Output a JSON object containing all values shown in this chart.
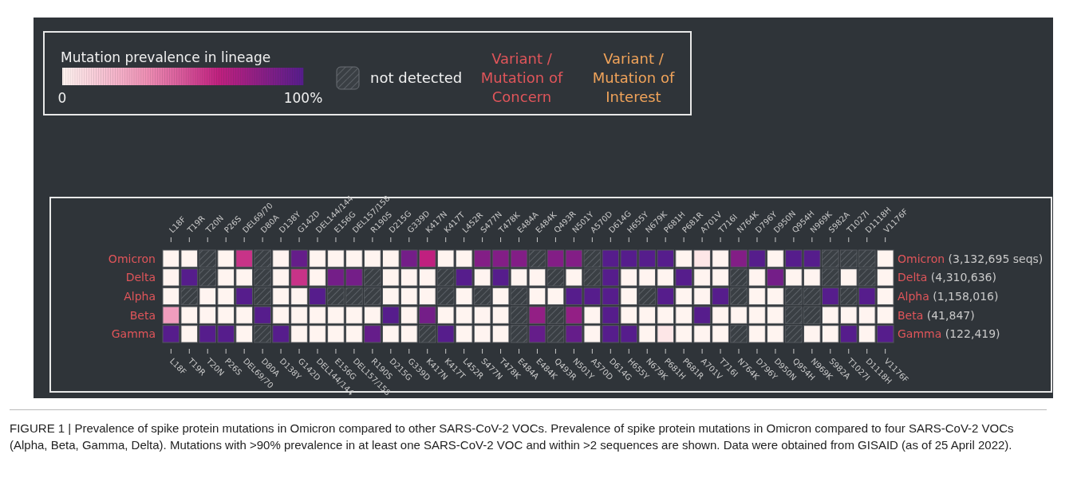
{
  "chart_data": {
    "type": "heatmap",
    "clabel": "Mutation prevalence in lineage",
    "clim": [
      0,
      100
    ],
    "cticks": [
      {
        "value": 0,
        "label": "0"
      },
      {
        "value": 100,
        "label": "100%"
      }
    ],
    "annotations": [
      "not detected",
      "Variant / Mutation of Concern",
      "Variant / Mutation of Interest",
      "FIGURE 1 | Prevalence of spike protein mutations in Omicron compared to other SARS-CoV-2 VOCs. Prevalence of spike protein mutations in Omicron compared to four SARS-CoV-2 VOCs (Alpha, Beta, Gamma, Delta). Mutations with >90% prevalence in at least one SARS-CoV-2 VOC and within >2 sequences are shown. Data were obtained from GISAID (as of 25 April 2022)."
    ],
    "categories": [
      "L18F",
      "T19R",
      "T20N",
      "P26S",
      "DEL69/70",
      "D80A",
      "D138Y",
      "G142D",
      "DEL144/144",
      "E156G",
      "DEL157/158",
      "R190S",
      "D215G",
      "G339D",
      "K417N",
      "K417T",
      "L452R",
      "S477N",
      "T478K",
      "E484A",
      "E484K",
      "Q493R",
      "N501Y",
      "A570D",
      "D614G",
      "H655Y",
      "N679K",
      "P681H",
      "P681R",
      "A701V",
      "T716I",
      "N764K",
      "D796Y",
      "D950N",
      "Q954H",
      "N969K",
      "S982A",
      "T1027I",
      "D1118H",
      "V1176F"
    ],
    "y_categories": [
      "Omicron",
      "Delta",
      "Alpha",
      "Beta",
      "Gamma"
    ],
    "y2_categories": [
      "Omicron (3,132,695 seqs)",
      "Delta (4,310,636)",
      "Alpha (1,158,016)",
      "Beta (41,847)",
      "Gamma (122,419)"
    ],
    "cells": [
      [
        0,
        0,
        null,
        0,
        60,
        null,
        0,
        95,
        0,
        0,
        0,
        0,
        0,
        90,
        65,
        0,
        0,
        85,
        85,
        85,
        null,
        85,
        85,
        null,
        100,
        100,
        100,
        100,
        0,
        5,
        0,
        85,
        100,
        0,
        100,
        100,
        null,
        null,
        null,
        0
      ],
      [
        0,
        100,
        null,
        0,
        0,
        null,
        0,
        60,
        0,
        90,
        90,
        null,
        0,
        0,
        0,
        null,
        100,
        0,
        100,
        0,
        0,
        null,
        0,
        null,
        100,
        0,
        0,
        0,
        100,
        0,
        0,
        null,
        0,
        90,
        0,
        0,
        null,
        0,
        null,
        0
      ],
      [
        0,
        null,
        0,
        0,
        100,
        null,
        0,
        0,
        100,
        null,
        null,
        null,
        0,
        0,
        0,
        null,
        0,
        null,
        0,
        null,
        0,
        0,
        100,
        100,
        100,
        0,
        null,
        100,
        0,
        0,
        100,
        null,
        0,
        0,
        null,
        null,
        100,
        null,
        100,
        0
      ],
      [
        30,
        0,
        0,
        0,
        0,
        100,
        0,
        0,
        0,
        0,
        0,
        0,
        100,
        0,
        90,
        0,
        0,
        0,
        0,
        null,
        80,
        null,
        80,
        0,
        100,
        0,
        0,
        0,
        0,
        100,
        0,
        0,
        0,
        0,
        null,
        null,
        0,
        0,
        0,
        0
      ],
      [
        100,
        0,
        100,
        100,
        0,
        null,
        100,
        0,
        0,
        0,
        0,
        95,
        0,
        0,
        null,
        100,
        0,
        0,
        0,
        null,
        95,
        null,
        95,
        0,
        100,
        100,
        0,
        5,
        0,
        0,
        0,
        null,
        0,
        0,
        null,
        0,
        0,
        100,
        0,
        100
      ]
    ]
  }
}
